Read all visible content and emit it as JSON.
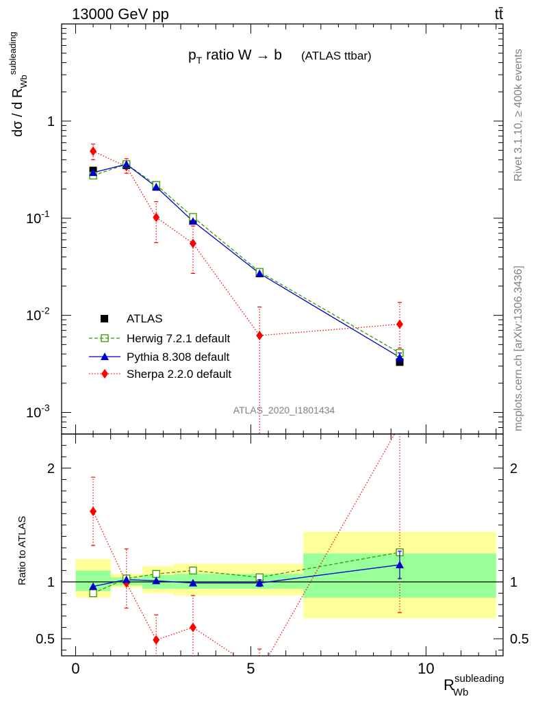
{
  "header": {
    "left": "13000 GeV pp",
    "right": "tt̄"
  },
  "plot_title": {
    "main_p": "p",
    "main_sub": "T",
    "main_rest": " ratio W → b",
    "suffix": "(ATLAS ttbar)"
  },
  "side_labels": {
    "rivet": "Rivet 3.1.10, ≥ 400k events",
    "mcplots": "mcplots.cern.ch [arXiv:1306.3436]"
  },
  "watermark": "ATLAS_2020_I1801434",
  "axis_text": {
    "ylabel_top": "dσ / d R",
    "ylabel_top_sub": "Wb",
    "ylabel_top_sup": "subleading",
    "ylabel_ratio": "Ratio to ATLAS",
    "xlabel": "R",
    "xlabel_sub": "Wb",
    "xlabel_sup": "subleading"
  },
  "colors": {
    "atlas": "#000000",
    "herwig": "#339900",
    "pythia": "#0000cc",
    "sherpa": "#ff0000",
    "band_inner": "#99ff99",
    "band_outer": "#ffff99"
  },
  "chart_data": {
    "type": "line",
    "x": [
      0.5,
      1.45,
      2.3,
      3.35,
      5.25,
      9.25
    ],
    "xlim": [
      -0.4,
      12.2
    ],
    "ylim_top": [
      0.0006,
      10
    ],
    "yscale_top": "log",
    "ylim_ratio": [
      0.35,
      2.3
    ],
    "xticks": [
      0,
      5,
      10
    ],
    "yticks_top": [
      "1",
      "10^{-1}",
      "10^{-2}",
      "10^{-3}"
    ],
    "yticks_ratio": [
      "0.5",
      "1",
      "2"
    ],
    "legend_placement": "lower-left",
    "series": [
      {
        "name": "ATLAS",
        "values": [
          0.31,
          0.35,
          0.21,
          0.094,
          0.027,
          0.0033
        ],
        "errors": [
          0,
          0,
          0,
          0,
          0,
          0
        ]
      },
      {
        "name": "Herwig 7.2.1 default",
        "values": [
          0.275,
          0.36,
          0.22,
          0.103,
          0.028,
          0.0041
        ],
        "errors": [
          0,
          0,
          0,
          0,
          0,
          0
        ]
      },
      {
        "name": "Pythia 8.308 default",
        "values": [
          0.295,
          0.36,
          0.21,
          0.093,
          0.027,
          0.0037
        ],
        "errors": [
          0,
          0,
          0,
          0,
          0,
          0.0004
        ]
      },
      {
        "name": "Sherpa 2.2.0 default",
        "values": [
          0.49,
          0.34,
          0.102,
          0.055,
          0.0062,
          0.0081
        ],
        "err_lo": [
          0.09,
          0.05,
          0.046,
          0.028,
          0.006,
          0.0035
        ],
        "err_hi": [
          0.09,
          0.07,
          0.046,
          0.028,
          0.006,
          0.0055
        ]
      }
    ],
    "ratio": {
      "bands": [
        {
          "x0": 0.0,
          "x1": 1.0,
          "inner": [
            0.92,
            1.1
          ],
          "outer": [
            0.86,
            1.2
          ]
        },
        {
          "x0": 1.0,
          "x1": 1.9,
          "inner": [
            0.97,
            1.04
          ],
          "outer": [
            0.95,
            1.07
          ]
        },
        {
          "x0": 1.9,
          "x1": 2.8,
          "inner": [
            0.94,
            1.06
          ],
          "outer": [
            0.9,
            1.14
          ]
        },
        {
          "x0": 2.8,
          "x1": 4.0,
          "inner": [
            0.94,
            1.07
          ],
          "outer": [
            0.88,
            1.16
          ]
        },
        {
          "x0": 4.0,
          "x1": 6.5,
          "inner": [
            0.94,
            1.07
          ],
          "outer": [
            0.88,
            1.16
          ]
        },
        {
          "x0": 6.5,
          "x1": 12.0,
          "inner": [
            0.86,
            1.25
          ],
          "outer": [
            0.68,
            1.44
          ]
        }
      ],
      "herwig": [
        0.9,
        1.03,
        1.07,
        1.1,
        1.04,
        1.26
      ],
      "pythia": [
        0.96,
        1.02,
        1.01,
        0.99,
        0.99,
        1.15
      ],
      "pythia_err": [
        0,
        0,
        0,
        0,
        0.03,
        0.12
      ],
      "sherpa": [
        1.62,
        0.99,
        0.49,
        0.6,
        0.21,
        2.38
      ],
      "sherpa_err_lo": [
        0.3,
        0.22,
        0.22,
        0.28,
        0.2,
        1.65
      ],
      "sherpa_err_hi": [
        0.3,
        0.3,
        0.22,
        0.28,
        0.2,
        1.65
      ]
    }
  }
}
